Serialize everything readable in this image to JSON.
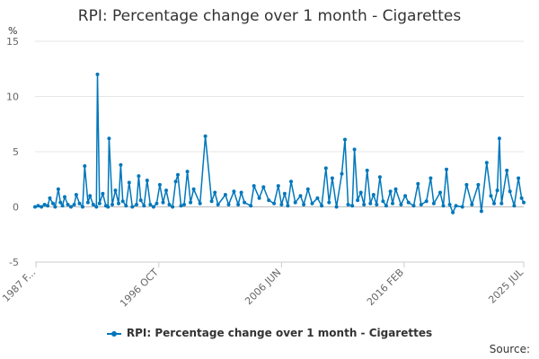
{
  "title": "RPI: Percentage change over 1 month - Cigarettes",
  "source_label": "Source:",
  "series_color": "#0077bb",
  "legend_marker_icon": "line-with-dot-icon",
  "chart_data": {
    "type": "line",
    "title": "RPI: Percentage change over 1 month - Cigarettes",
    "ylabel": "%",
    "xlabel": "",
    "ylim": [
      -5,
      15
    ],
    "yticks": [
      -5,
      0,
      5,
      10,
      15
    ],
    "grid": true,
    "legend_position": "bottom",
    "x_range": [
      "1987 JAN",
      "2025 JUL"
    ],
    "x_tick_labels": [
      "1987 F...",
      "1996 OCT",
      "2006 JUN",
      "2016 FEB",
      "2025 JUL"
    ],
    "x_tick_dates": [
      "1987 FEB",
      "1996 OCT",
      "2006 JUN",
      "2016 FEB",
      "2025 JUL"
    ],
    "series": [
      {
        "name": "RPI: Percentage change over 1 month - Cigarettes",
        "points": [
          [
            "1987 JAN",
            0.0
          ],
          [
            "1987 APR",
            0.1
          ],
          [
            "1987 JUL",
            0.0
          ],
          [
            "1987 OCT",
            0.2
          ],
          [
            "1988 JAN",
            0.1
          ],
          [
            "1988 MAR",
            0.8
          ],
          [
            "1988 JUN",
            0.3
          ],
          [
            "1988 AUG",
            0.0
          ],
          [
            "1988 NOV",
            1.6
          ],
          [
            "1989 JAN",
            0.4
          ],
          [
            "1989 MAR",
            0.1
          ],
          [
            "1989 MAY",
            0.9
          ],
          [
            "1989 AUG",
            0.2
          ],
          [
            "1989 NOV",
            0.0
          ],
          [
            "1990 FEB",
            0.2
          ],
          [
            "1990 APR",
            1.1
          ],
          [
            "1990 JUL",
            0.3
          ],
          [
            "1990 OCT",
            0.0
          ],
          [
            "1990 DEC",
            3.7
          ],
          [
            "1991 MAR",
            0.4
          ],
          [
            "1991 MAY",
            1.0
          ],
          [
            "1991 AUG",
            0.2
          ],
          [
            "1991 NOV",
            0.0
          ],
          [
            "1991 DEC",
            12.0
          ],
          [
            "1992 FEB",
            0.3
          ],
          [
            "1992 MAY",
            1.2
          ],
          [
            "1992 AUG",
            0.1
          ],
          [
            "1992 OCT",
            0.0
          ],
          [
            "1992 NOV",
            6.2
          ],
          [
            "1993 FEB",
            0.2
          ],
          [
            "1993 MAY",
            1.5
          ],
          [
            "1993 AUG",
            0.3
          ],
          [
            "1993 OCT",
            3.8
          ],
          [
            "1993 DEC",
            0.5
          ],
          [
            "1994 MAR",
            0.1
          ],
          [
            "1994 JUN",
            2.2
          ],
          [
            "1994 SEP",
            0.0
          ],
          [
            "1995 JAN",
            0.2
          ],
          [
            "1995 MAR",
            2.8
          ],
          [
            "1995 MAY",
            0.6
          ],
          [
            "1995 AUG",
            0.1
          ],
          [
            "1995 NOV",
            2.4
          ],
          [
            "1996 FEB",
            0.2
          ],
          [
            "1996 MAY",
            0.0
          ],
          [
            "1996 AUG",
            0.3
          ],
          [
            "1996 NOV",
            2.0
          ],
          [
            "1997 FEB",
            0.4
          ],
          [
            "1997 MAY",
            1.5
          ],
          [
            "1997 AUG",
            0.2
          ],
          [
            "1997 NOV",
            0.0
          ],
          [
            "1998 FEB",
            2.3
          ],
          [
            "1998 APR",
            2.9
          ],
          [
            "1998 JUL",
            0.1
          ],
          [
            "1998 OCT",
            0.2
          ],
          [
            "1999 JAN",
            3.2
          ],
          [
            "1999 APR",
            0.4
          ],
          [
            "1999 JUL",
            1.6
          ],
          [
            "2000 JAN",
            0.3
          ],
          [
            "2000 JUN",
            6.4
          ],
          [
            "2000 DEC",
            0.5
          ],
          [
            "2001 MAR",
            1.3
          ],
          [
            "2001 JUN",
            0.2
          ],
          [
            "2002 JAN",
            1.1
          ],
          [
            "2002 APR",
            0.2
          ],
          [
            "2002 SEP",
            1.4
          ],
          [
            "2003 JAN",
            0.2
          ],
          [
            "2003 APR",
            1.3
          ],
          [
            "2003 JUL",
            0.4
          ],
          [
            "2004 JAN",
            0.1
          ],
          [
            "2004 APR",
            1.9
          ],
          [
            "2004 SEP",
            0.8
          ],
          [
            "2005 JAN",
            1.8
          ],
          [
            "2005 JUN",
            0.6
          ],
          [
            "2005 NOV",
            0.3
          ],
          [
            "2006 MAR",
            1.9
          ],
          [
            "2006 JUN",
            0.2
          ],
          [
            "2006 SEP",
            1.2
          ],
          [
            "2006 DEC",
            0.1
          ],
          [
            "2007 MAR",
            2.3
          ],
          [
            "2007 JUL",
            0.4
          ],
          [
            "2007 DEC",
            1.0
          ],
          [
            "2008 MAR",
            0.2
          ],
          [
            "2008 JUL",
            1.6
          ],
          [
            "2008 NOV",
            0.3
          ],
          [
            "2009 APR",
            0.8
          ],
          [
            "2009 AUG",
            0.1
          ],
          [
            "2009 DEC",
            3.5
          ],
          [
            "2010 MAR",
            0.4
          ],
          [
            "2010 JUN",
            2.6
          ],
          [
            "2010 OCT",
            0.0
          ],
          [
            "2011 MAR",
            3.0
          ],
          [
            "2011 JUN",
            6.1
          ],
          [
            "2011 SEP",
            0.2
          ],
          [
            "2012 JAN",
            0.1
          ],
          [
            "2012 MAR",
            5.2
          ],
          [
            "2012 JUN",
            0.6
          ],
          [
            "2012 SEP",
            1.3
          ],
          [
            "2012 DEC",
            0.2
          ],
          [
            "2013 MAR",
            3.3
          ],
          [
            "2013 JUN",
            0.3
          ],
          [
            "2013 SEP",
            1.1
          ],
          [
            "2013 DEC",
            0.2
          ],
          [
            "2014 MAR",
            2.7
          ],
          [
            "2014 JUN",
            0.5
          ],
          [
            "2014 SEP",
            0.1
          ],
          [
            "2015 JAN",
            1.4
          ],
          [
            "2015 MAR",
            0.3
          ],
          [
            "2015 JUN",
            1.6
          ],
          [
            "2015 NOV",
            0.2
          ],
          [
            "2016 MAR",
            1.0
          ],
          [
            "2016 JUN",
            0.4
          ],
          [
            "2016 NOV",
            0.1
          ],
          [
            "2017 MAR",
            2.1
          ],
          [
            "2017 JUN",
            0.2
          ],
          [
            "2017 NOV",
            0.5
          ],
          [
            "2018 MAR",
            2.6
          ],
          [
            "2018 JUN",
            0.3
          ],
          [
            "2018 DEC",
            1.3
          ],
          [
            "2019 MAR",
            0.1
          ],
          [
            "2019 JUN",
            3.4
          ],
          [
            "2019 SEP",
            0.2
          ],
          [
            "2019 DEC",
            -0.5
          ],
          [
            "2020 MAR",
            0.1
          ],
          [
            "2020 SEP",
            0.0
          ],
          [
            "2021 JAN",
            2.0
          ],
          [
            "2021 JUN",
            0.2
          ],
          [
            "2021 DEC",
            2.0
          ],
          [
            "2022 MAR",
            -0.4
          ],
          [
            "2022 AUG",
            4.0
          ],
          [
            "2022 DEC",
            1.0
          ],
          [
            "2023 MAR",
            0.3
          ],
          [
            "2023 JUN",
            1.5
          ],
          [
            "2023 AUG",
            6.2
          ],
          [
            "2023 OCT",
            0.3
          ],
          [
            "2024 MAR",
            3.3
          ],
          [
            "2024 JUN",
            1.4
          ],
          [
            "2024 OCT",
            0.1
          ],
          [
            "2025 FEB",
            2.6
          ],
          [
            "2025 MAY",
            0.8
          ],
          [
            "2025 JUL",
            0.4
          ]
        ]
      }
    ]
  }
}
